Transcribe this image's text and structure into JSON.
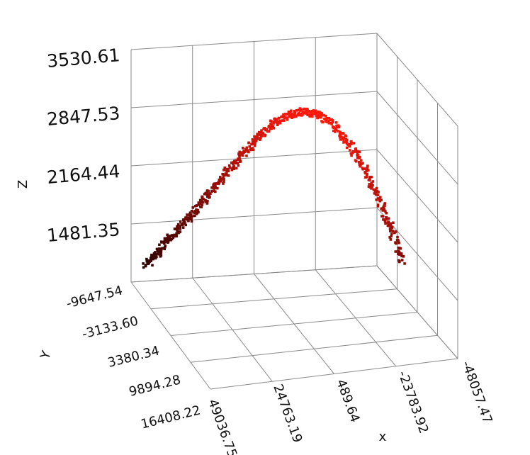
{
  "chart_data": {
    "type": "scatter",
    "subtype": "3d-scatter",
    "title": "",
    "xlabel": "x",
    "ylabel": "Y",
    "zlabel": "Z",
    "x_ticks": [
      "49036.75",
      "24763.19",
      "489.64",
      "-23783.92",
      "-48057.47"
    ],
    "y_ticks": [
      "-9647.54",
      "-3133.60",
      "3380.34",
      "9894.28",
      "16408.22"
    ],
    "z_ticks": [
      "1481.35",
      "2164.44",
      "2847.53",
      "3530.61"
    ],
    "xlim": [
      49036.75,
      -48057.47
    ],
    "ylim": [
      -9647.54,
      16408.22
    ],
    "zlim": [
      798.26,
      3530.61
    ],
    "grid": true,
    "colormap": "black-to-red by z",
    "color_low": "#1a0000",
    "color_high": "#ff1a0d",
    "points": [
      {
        "x": 45000,
        "y": 15000,
        "z": 1050
      },
      {
        "x": 41000,
        "y": 14000,
        "z": 1250
      },
      {
        "x": 37000,
        "y": 13000,
        "z": 1480
      },
      {
        "x": 33000,
        "y": 11500,
        "z": 1720
      },
      {
        "x": 29000,
        "y": 10000,
        "z": 1980
      },
      {
        "x": 25000,
        "y": 8500,
        "z": 2250
      },
      {
        "x": 21000,
        "y": 7000,
        "z": 2520
      },
      {
        "x": 17000,
        "y": 5500,
        "z": 2780
      },
      {
        "x": 13000,
        "y": 4000,
        "z": 3020
      },
      {
        "x": 9000,
        "y": 2500,
        "z": 3230
      },
      {
        "x": 5000,
        "y": 1000,
        "z": 3380
      },
      {
        "x": 1000,
        "y": -500,
        "z": 3470
      },
      {
        "x": -3000,
        "y": -2000,
        "z": 3480
      },
      {
        "x": -7000,
        "y": -3500,
        "z": 3410
      },
      {
        "x": -11000,
        "y": -5000,
        "z": 3260
      },
      {
        "x": -15000,
        "y": -6300,
        "z": 3030
      },
      {
        "x": -19000,
        "y": -7500,
        "z": 2730
      },
      {
        "x": -23000,
        "y": -8500,
        "z": 2380
      },
      {
        "x": -27000,
        "y": -9300,
        "z": 1980
      }
    ]
  }
}
